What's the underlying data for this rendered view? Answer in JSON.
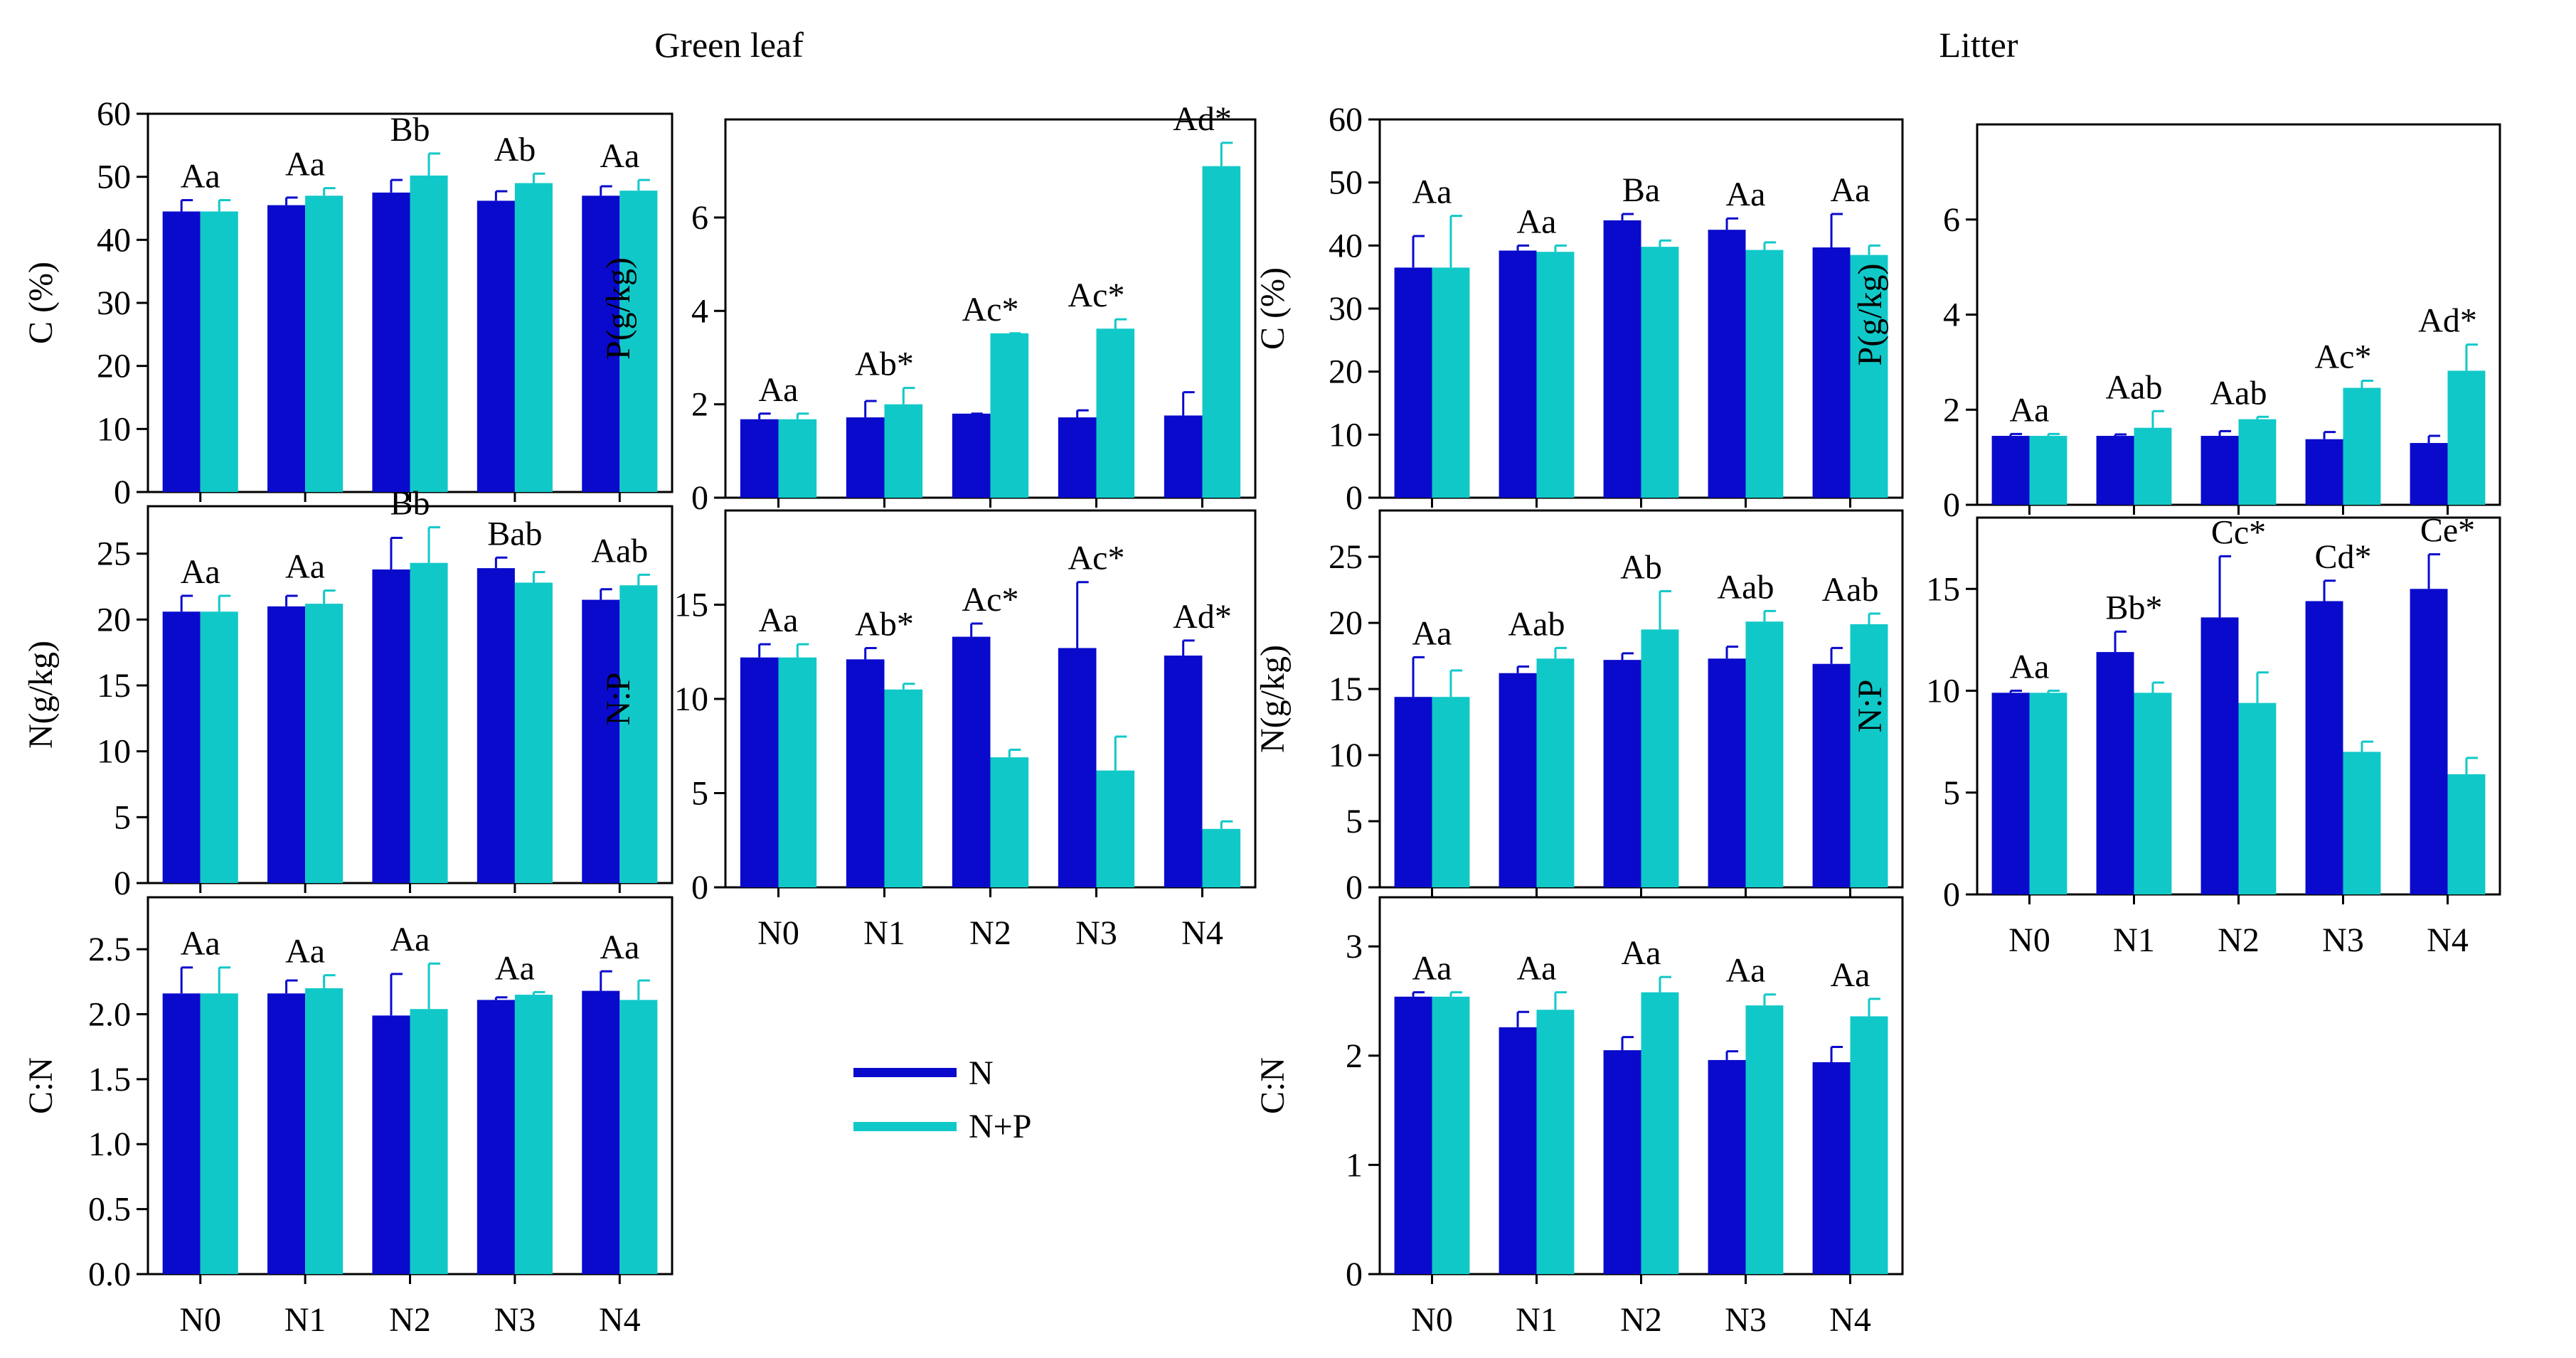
{
  "headers": {
    "left": "Green leaf",
    "right": "Litter"
  },
  "legend": {
    "n_label": "N",
    "np_label": "N+P"
  },
  "colors": {
    "N": "#0a0acc",
    "NP": "#11c8c8",
    "axis": "#000000"
  },
  "chart_data": [
    {
      "id": "leaf-c",
      "type": "bar",
      "title": "Green leaf",
      "ylabel": "C (%)",
      "categories": [
        "N0",
        "N1",
        "N2",
        "N3",
        "N4"
      ],
      "ylim": [
        0,
        60
      ],
      "yticks": [
        0,
        10,
        20,
        30,
        40,
        50,
        60
      ],
      "tickdec": 0,
      "series": [
        {
          "name": "N",
          "values": [
            44.5,
            45.5,
            47.5,
            46.2,
            47.0
          ],
          "errors": [
            1.8,
            1.2,
            2.0,
            1.5,
            1.5
          ]
        },
        {
          "name": "N+P",
          "values": [
            44.5,
            47.0,
            50.2,
            49.0,
            47.8
          ],
          "errors": [
            1.8,
            1.2,
            3.5,
            1.5,
            1.7
          ]
        }
      ],
      "labels": [
        "Aa",
        "Aa",
        "Bb",
        "Ab",
        "Aa"
      ],
      "show_x": false
    },
    {
      "id": "leaf-n",
      "type": "bar",
      "ylabel": "N(g/kg)",
      "categories": [
        "N0",
        "N1",
        "N2",
        "N3",
        "N4"
      ],
      "ylim": [
        0,
        28.6
      ],
      "yticks": [
        0,
        5,
        10,
        15,
        20,
        25
      ],
      "tickdec": 0,
      "series": [
        {
          "name": "N",
          "values": [
            20.6,
            21.0,
            23.8,
            23.9,
            21.5
          ],
          "errors": [
            1.2,
            0.8,
            2.4,
            0.8,
            0.8
          ]
        },
        {
          "name": "N+P",
          "values": [
            20.6,
            21.2,
            24.3,
            22.8,
            22.6
          ],
          "errors": [
            1.2,
            1.0,
            2.7,
            0.8,
            0.8
          ]
        }
      ],
      "labels": [
        "Aa",
        "Aa",
        "Bb",
        "Bab",
        "Aab"
      ],
      "show_x": false
    },
    {
      "id": "leaf-cn",
      "type": "bar",
      "ylabel": "C:N",
      "categories": [
        "N0",
        "N1",
        "N2",
        "N3",
        "N4"
      ],
      "ylim": [
        0,
        2.9
      ],
      "yticks": [
        0,
        0.5,
        1.0,
        1.5,
        2.0,
        2.5
      ],
      "tickdec": 1,
      "series": [
        {
          "name": "N",
          "values": [
            2.16,
            2.16,
            1.99,
            2.11,
            2.18
          ],
          "errors": [
            0.2,
            0.1,
            0.32,
            0.02,
            0.15
          ]
        },
        {
          "name": "N+P",
          "values": [
            2.16,
            2.2,
            2.04,
            2.15,
            2.11
          ],
          "errors": [
            0.2,
            0.1,
            0.35,
            0.02,
            0.15
          ]
        }
      ],
      "labels": [
        "Aa",
        "Aa",
        "Aa",
        "Aa",
        "Aa"
      ],
      "show_x": true
    },
    {
      "id": "leaf-p",
      "type": "bar",
      "ylabel": "P(g/kg)",
      "categories": [
        "N0",
        "N1",
        "N2",
        "N3",
        "N4"
      ],
      "ylim": [
        0,
        8.1
      ],
      "yticks": [
        0,
        2,
        4,
        6
      ],
      "tickdec": 0,
      "series": [
        {
          "name": "N",
          "values": [
            1.68,
            1.72,
            1.8,
            1.72,
            1.76
          ],
          "errors": [
            0.12,
            0.35,
            0.0,
            0.15,
            0.5
          ]
        },
        {
          "name": "N+P",
          "values": [
            1.68,
            2.0,
            3.52,
            3.62,
            7.1
          ],
          "errors": [
            0.12,
            0.35,
            0.0,
            0.2,
            0.5
          ]
        }
      ],
      "labels": [
        "Aa",
        "Ab*",
        "Ac*",
        "Ac*",
        "Ad*"
      ],
      "show_x": false
    },
    {
      "id": "leaf-np",
      "type": "bar",
      "ylabel": "N:P",
      "categories": [
        "N0",
        "N1",
        "N2",
        "N3",
        "N4"
      ],
      "ylim": [
        0,
        20
      ],
      "yticks": [
        0,
        5,
        10,
        15
      ],
      "tickdec": 0,
      "series": [
        {
          "name": "N",
          "values": [
            12.2,
            12.1,
            13.3,
            12.7,
            12.3
          ],
          "errors": [
            0.7,
            0.6,
            0.7,
            3.5,
            0.8
          ]
        },
        {
          "name": "N+P",
          "values": [
            12.2,
            10.5,
            6.9,
            6.2,
            3.1
          ],
          "errors": [
            0.7,
            0.3,
            0.4,
            1.8,
            0.4
          ]
        }
      ],
      "labels": [
        "Aa",
        "Ab*",
        "Ac*",
        "Ac*",
        "Ad*"
      ],
      "show_x": true
    },
    {
      "id": "litter-c",
      "type": "bar",
      "title": "Litter",
      "ylabel": "C (%)",
      "categories": [
        "N0",
        "N1",
        "N2",
        "N3",
        "N4"
      ],
      "ylim": [
        0,
        60
      ],
      "yticks": [
        0,
        10,
        20,
        30,
        40,
        50,
        60
      ],
      "tickdec": 0,
      "series": [
        {
          "name": "N",
          "values": [
            36.5,
            39.2,
            44.0,
            42.5,
            39.7
          ],
          "errors": [
            5.0,
            0.8,
            1.0,
            1.8,
            5.3
          ]
        },
        {
          "name": "N+P",
          "values": [
            36.5,
            39.0,
            39.8,
            39.3,
            38.5
          ],
          "errors": [
            8.2,
            1.0,
            1.0,
            1.2,
            1.5
          ]
        }
      ],
      "labels": [
        "Aa",
        "Aa",
        "Ba",
        "Aa",
        "Aa"
      ],
      "show_x": false
    },
    {
      "id": "litter-n",
      "type": "bar",
      "ylabel": "N(g/kg)",
      "categories": [
        "N0",
        "N1",
        "N2",
        "N3",
        "N4"
      ],
      "ylim": [
        0,
        28.5
      ],
      "yticks": [
        0,
        5,
        10,
        15,
        20,
        25
      ],
      "tickdec": 0,
      "series": [
        {
          "name": "N",
          "values": [
            14.4,
            16.2,
            17.2,
            17.3,
            16.9
          ],
          "errors": [
            3.0,
            0.5,
            0.5,
            0.9,
            1.2
          ]
        },
        {
          "name": "N+P",
          "values": [
            14.4,
            17.3,
            19.5,
            20.1,
            19.9
          ],
          "errors": [
            2.0,
            0.8,
            2.9,
            0.8,
            0.8
          ]
        }
      ],
      "labels": [
        "Aa",
        "Aab",
        "Ab",
        "Aab",
        "Aab"
      ],
      "show_x": false
    },
    {
      "id": "litter-cn",
      "type": "bar",
      "ylabel": "C:N",
      "categories": [
        "N0",
        "N1",
        "N2",
        "N3",
        "N4"
      ],
      "ylim": [
        0,
        3.45
      ],
      "yticks": [
        0,
        1,
        2,
        3
      ],
      "tickdec": 0,
      "series": [
        {
          "name": "N",
          "values": [
            2.54,
            2.26,
            2.05,
            1.96,
            1.94
          ],
          "errors": [
            0.04,
            0.14,
            0.12,
            0.08,
            0.14
          ]
        },
        {
          "name": "N+P",
          "values": [
            2.54,
            2.42,
            2.58,
            2.46,
            2.36
          ],
          "errors": [
            0.04,
            0.16,
            0.14,
            0.1,
            0.16
          ]
        }
      ],
      "labels": [
        "Aa",
        "Aa",
        "Aa",
        "Aa",
        "Aa"
      ],
      "show_x": true
    },
    {
      "id": "litter-p",
      "type": "bar",
      "ylabel": "P(g/kg)",
      "categories": [
        "N0",
        "N1",
        "N2",
        "N3",
        "N4"
      ],
      "ylim": [
        0,
        8.0
      ],
      "yticks": [
        0,
        2,
        4,
        6
      ],
      "tickdec": 0,
      "series": [
        {
          "name": "N",
          "values": [
            1.45,
            1.45,
            1.45,
            1.38,
            1.3
          ],
          "errors": [
            0.04,
            0.03,
            0.1,
            0.15,
            0.15
          ]
        },
        {
          "name": "N+P",
          "values": [
            1.45,
            1.62,
            1.8,
            2.46,
            2.82
          ],
          "errors": [
            0.04,
            0.35,
            0.05,
            0.15,
            0.55
          ]
        }
      ],
      "labels": [
        "Aa",
        "Aab",
        "Aab",
        "Ac*",
        "Ad*"
      ],
      "show_x": false
    },
    {
      "id": "litter-np",
      "type": "bar",
      "ylabel": "N:P",
      "categories": [
        "N0",
        "N1",
        "N2",
        "N3",
        "N4"
      ],
      "ylim": [
        0,
        18.5
      ],
      "yticks": [
        0,
        5,
        10,
        15
      ],
      "tickdec": 0,
      "series": [
        {
          "name": "N",
          "values": [
            9.9,
            11.9,
            13.6,
            14.4,
            15.0
          ],
          "errors": [
            0.1,
            1.0,
            3.0,
            1.0,
            1.7
          ]
        },
        {
          "name": "N+P",
          "values": [
            9.9,
            9.9,
            9.4,
            7.0,
            5.9
          ],
          "errors": [
            0.1,
            0.5,
            1.5,
            0.5,
            0.8
          ]
        }
      ],
      "labels": [
        "Aa",
        "Bb*",
        "Cc*",
        "Cd*",
        "Ce*"
      ],
      "show_x": true
    }
  ]
}
